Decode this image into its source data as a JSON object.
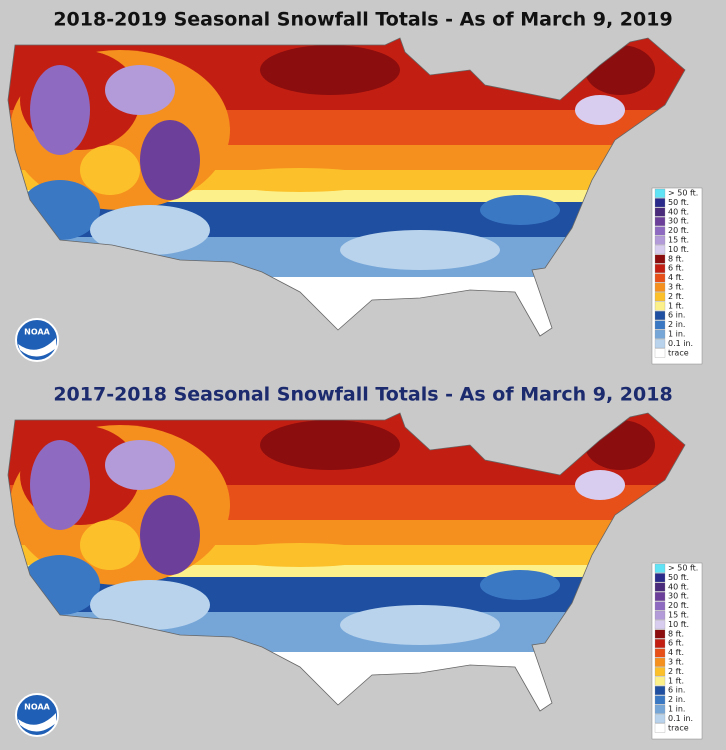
{
  "panels": [
    {
      "title": "2018-2019 Seasonal Snowfall Totals - As of March 9, 2019",
      "logo": "NOAA",
      "legend": [
        {
          "label": "> 50 ft.",
          "color": "#5fe3f5"
        },
        {
          "label": "50 ft.",
          "color": "#2a2a8a"
        },
        {
          "label": "40 ft.",
          "color": "#4a2a7a"
        },
        {
          "label": "30 ft.",
          "color": "#6b3f9a"
        },
        {
          "label": "20 ft.",
          "color": "#8e6ac0"
        },
        {
          "label": "15 ft.",
          "color": "#b39ad8"
        },
        {
          "label": "10 ft.",
          "color": "#d8cdef"
        },
        {
          "label": "8 ft.",
          "color": "#8b0d0d"
        },
        {
          "label": "6 ft.",
          "color": "#c21f12"
        },
        {
          "label": "4 ft.",
          "color": "#e8501a"
        },
        {
          "label": "3 ft.",
          "color": "#f5901e"
        },
        {
          "label": "2 ft.",
          "color": "#fcc12a"
        },
        {
          "label": "1 ft.",
          "color": "#fbf08a"
        },
        {
          "label": "6 in.",
          "color": "#1e4fa0"
        },
        {
          "label": "2 in.",
          "color": "#3a78c4"
        },
        {
          "label": "1 in.",
          "color": "#76a6d8"
        },
        {
          "label": "0.1 in.",
          "color": "#b9d3ec"
        },
        {
          "label": "trace",
          "color": "#ffffff"
        }
      ]
    },
    {
      "title": "2017-2018 Seasonal Snowfall Totals - As of March 9, 2018",
      "logo": "NOAA",
      "legend": [
        {
          "label": "> 50 ft.",
          "color": "#5fe3f5"
        },
        {
          "label": "50 ft.",
          "color": "#2a2a8a"
        },
        {
          "label": "40 ft.",
          "color": "#4a2a7a"
        },
        {
          "label": "30 ft.",
          "color": "#6b3f9a"
        },
        {
          "label": "20 ft.",
          "color": "#8e6ac0"
        },
        {
          "label": "15 ft.",
          "color": "#b39ad8"
        },
        {
          "label": "10 ft.",
          "color": "#d8cdef"
        },
        {
          "label": "8 ft.",
          "color": "#8b0d0d"
        },
        {
          "label": "6 ft.",
          "color": "#c21f12"
        },
        {
          "label": "4 ft.",
          "color": "#e8501a"
        },
        {
          "label": "3 ft.",
          "color": "#f5901e"
        },
        {
          "label": "2 ft.",
          "color": "#fcc12a"
        },
        {
          "label": "1 ft.",
          "color": "#fbf08a"
        },
        {
          "label": "6 in.",
          "color": "#1e4fa0"
        },
        {
          "label": "2 in.",
          "color": "#3a78c4"
        },
        {
          "label": "1 in.",
          "color": "#76a6d8"
        },
        {
          "label": "0.1 in.",
          "color": "#b9d3ec"
        },
        {
          "label": "trace",
          "color": "#ffffff"
        }
      ]
    }
  ]
}
